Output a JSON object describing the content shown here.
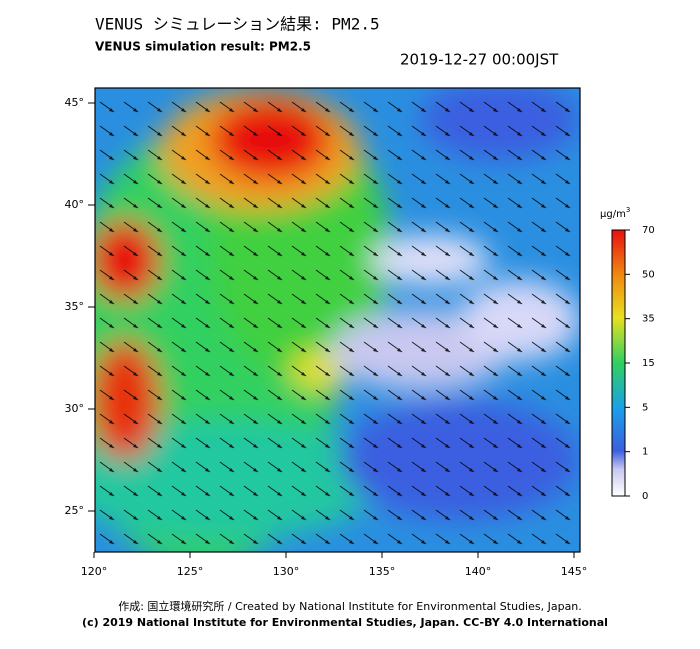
{
  "header": {
    "title": "VENUS シミュレーション結果: PM2.5",
    "subtitle": "VENUS simulation result: PM2.5",
    "datetime": "2019-12-27 00:00JST"
  },
  "map": {
    "lat_labels": [
      "45°",
      "40°",
      "35°",
      "30°",
      "25°"
    ],
    "lon_labels": [
      "120°",
      "125°",
      "130°",
      "135°",
      "140°",
      "145°"
    ]
  },
  "colorbar": {
    "unit": {
      "base": "μg/m",
      "sup": "3"
    },
    "ticks": [
      70,
      50,
      35,
      15,
      5,
      1,
      0
    ]
  },
  "footer": {
    "credit": "作成: 国立環境研究所 / Created by National Institute for Environmental Studies, Japan.",
    "license": "(c) 2019 National Institute for Environmental Studies, Japan. CC-BY 4.0 International"
  }
}
